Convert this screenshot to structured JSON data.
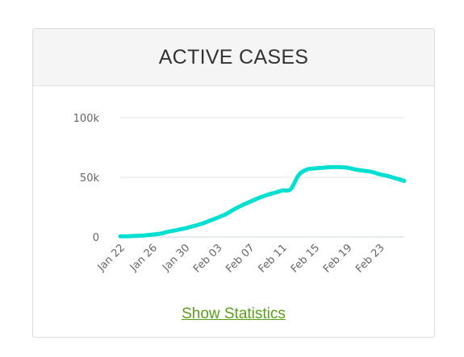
{
  "card": {
    "title": "ACTIVE CASES",
    "link_label": "Show Statistics"
  },
  "colors": {
    "series": "#00e0d2",
    "grid": "#e6e6e6",
    "axis": "#ccd6eb",
    "tick_text": "#666666",
    "link": "#5a9e1b",
    "header_bg": "#f5f5f5"
  },
  "chart_data": {
    "type": "line",
    "title": "ACTIVE CASES",
    "xlabel": "",
    "ylabel": "",
    "ylim": [
      0,
      100000
    ],
    "y_ticks": [
      0,
      50000,
      100000
    ],
    "y_tick_labels": [
      "0",
      "50k",
      "100k"
    ],
    "x_tick_labels": [
      "Jan 22",
      "Jan 26",
      "Jan 30",
      "Feb 03",
      "Feb 07",
      "Feb 11",
      "Feb 15",
      "Feb 19",
      "Feb 23"
    ],
    "grid": true,
    "legend": "none",
    "series": [
      {
        "x": [
          "Jan 22",
          "Jan 23",
          "Jan 24",
          "Jan 25",
          "Jan 26",
          "Jan 27",
          "Jan 28",
          "Jan 29",
          "Jan 30",
          "Jan 31",
          "Feb 01",
          "Feb 02",
          "Feb 03",
          "Feb 04",
          "Feb 05",
          "Feb 06",
          "Feb 07",
          "Feb 08",
          "Feb 09",
          "Feb 10",
          "Feb 11",
          "Feb 12",
          "Feb 13",
          "Feb 14",
          "Feb 15",
          "Feb 16",
          "Feb 17",
          "Feb 18",
          "Feb 19",
          "Feb 20",
          "Feb 21",
          "Feb 22",
          "Feb 23",
          "Feb 24",
          "Feb 25",
          "Feb 26"
        ],
        "values": [
          500,
          600,
          900,
          1300,
          2000,
          2800,
          4500,
          5800,
          7200,
          9000,
          11000,
          13500,
          16200,
          19000,
          23000,
          26500,
          29500,
          32500,
          35000,
          37000,
          39000,
          40000,
          52000,
          56500,
          57500,
          58000,
          58500,
          58500,
          58000,
          56500,
          55500,
          54500,
          52500,
          51000,
          49000,
          47000
        ]
      }
    ]
  }
}
